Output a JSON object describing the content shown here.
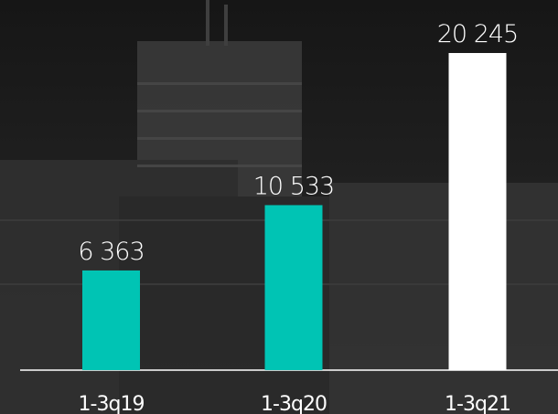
{
  "chart_data": {
    "type": "bar",
    "categories": [
      "1-3q19",
      "1-3q20",
      "1-3q21"
    ],
    "values": [
      6363,
      10533,
      20245
    ],
    "value_labels": [
      "6 363",
      "10 533",
      "20 245"
    ],
    "colors": [
      "#00c4b4",
      "#00c4b4",
      "#ffffff"
    ]
  }
}
